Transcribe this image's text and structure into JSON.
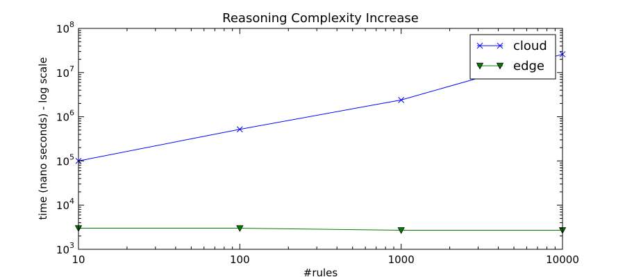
{
  "chart_data": {
    "type": "line",
    "title": "Reasoning Complexity Increase",
    "xlabel": "#rules",
    "ylabel": "time (nano seconds) - log scale",
    "x_scale": "log",
    "y_scale": "log",
    "xlim": [
      10,
      10000
    ],
    "ylim": [
      1000,
      100000000
    ],
    "x": [
      10,
      100,
      1000,
      10000
    ],
    "x_tick_labels": [
      "10",
      "100",
      "1000",
      "10000"
    ],
    "y_ticks": [
      {
        "base": "10",
        "exp": "3",
        "value": 1000
      },
      {
        "base": "10",
        "exp": "4",
        "value": 10000
      },
      {
        "base": "10",
        "exp": "5",
        "value": 100000
      },
      {
        "base": "10",
        "exp": "6",
        "value": 1000000
      },
      {
        "base": "10",
        "exp": "7",
        "value": 10000000
      },
      {
        "base": "10",
        "exp": "8",
        "value": 100000000
      }
    ],
    "grid": false,
    "legend_position": "top-right",
    "series": [
      {
        "name": "cloud",
        "marker": "x",
        "color": "#0000ff",
        "values": [
          100000,
          520000,
          2400000,
          26000000
        ]
      },
      {
        "name": "edge",
        "marker": "triangle-down",
        "color": "#008000",
        "values": [
          3000,
          3000,
          2700,
          2700
        ]
      }
    ]
  }
}
